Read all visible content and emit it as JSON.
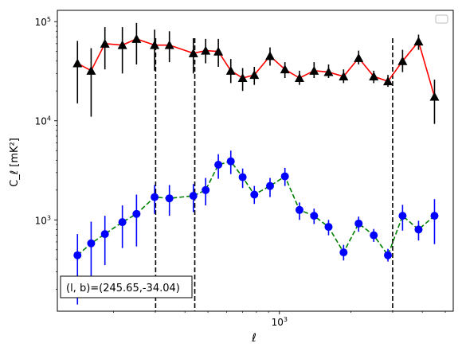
{
  "chart_data": {
    "type": "line",
    "xlabel": "ℓ",
    "ylabel": "C_ℓ [mK²]",
    "xscale": "log",
    "yscale": "log",
    "xlim": [
      116,
      5400
    ],
    "ylim": [
      120,
      130000
    ],
    "x_tick_labels": [
      {
        "value": 1000,
        "mantissa": "10",
        "exp": "3"
      }
    ],
    "y_tick_labels": [
      {
        "value": 1000,
        "mantissa": "10",
        "exp": "3"
      },
      {
        "value": 10000,
        "mantissa": "10",
        "exp": "4"
      },
      {
        "value": 100000,
        "mantissa": "10",
        "exp": "5"
      }
    ],
    "legend": {
      "placement": "top-right",
      "entries": []
    },
    "annotation": {
      "text": "(l, b)=(245.65,-34.04)",
      "placement": "bottom-left"
    },
    "vlines": [
      {
        "x": 301,
        "style": "dashed",
        "color": "#000000"
      },
      {
        "x": 440,
        "style": "dashed",
        "color": "#000000"
      },
      {
        "x": 3000,
        "style": "dashed",
        "color": "#000000"
      }
    ],
    "series": [
      {
        "color": "#000000",
        "line_color": "#ff0000",
        "line_style": "solid",
        "marker": "triangle",
        "points": [
          {
            "x": 141,
            "y": 38000,
            "lo": 15000,
            "hi": 64000
          },
          {
            "x": 161,
            "y": 32000,
            "lo": 11000,
            "hi": 54000
          },
          {
            "x": 184,
            "y": 60000,
            "lo": 33000,
            "hi": 88000
          },
          {
            "x": 218,
            "y": 58000,
            "lo": 30000,
            "hi": 88000
          },
          {
            "x": 250,
            "y": 67000,
            "lo": 37000,
            "hi": 97000
          },
          {
            "x": 298,
            "y": 58000,
            "lo": 32000,
            "hi": 83000
          },
          {
            "x": 344,
            "y": 58000,
            "lo": 39000,
            "hi": 80000
          },
          {
            "x": 434,
            "y": 48000,
            "lo": 30000,
            "hi": 68000
          },
          {
            "x": 489,
            "y": 51000,
            "lo": 38000,
            "hi": 67000
          },
          {
            "x": 553,
            "y": 50000,
            "lo": 35000,
            "hi": 67000
          },
          {
            "x": 624,
            "y": 32000,
            "lo": 24000,
            "hi": 42000
          },
          {
            "x": 700,
            "y": 27000,
            "lo": 20000,
            "hi": 34000
          },
          {
            "x": 784,
            "y": 29000,
            "lo": 23000,
            "hi": 35000
          },
          {
            "x": 913,
            "y": 45000,
            "lo": 36000,
            "hi": 55000
          },
          {
            "x": 1055,
            "y": 33000,
            "lo": 27000,
            "hi": 39000
          },
          {
            "x": 1215,
            "y": 27000,
            "lo": 23000,
            "hi": 32000
          },
          {
            "x": 1400,
            "y": 32000,
            "lo": 27000,
            "hi": 39000
          },
          {
            "x": 1611,
            "y": 31000,
            "lo": 27000,
            "hi": 37000
          },
          {
            "x": 1864,
            "y": 28000,
            "lo": 24000,
            "hi": 33000
          },
          {
            "x": 2157,
            "y": 43000,
            "lo": 37000,
            "hi": 51000
          },
          {
            "x": 2498,
            "y": 28000,
            "lo": 24000,
            "hi": 32000
          },
          {
            "x": 2866,
            "y": 25000,
            "lo": 22000,
            "hi": 29000
          },
          {
            "x": 3303,
            "y": 40000,
            "lo": 31000,
            "hi": 52000
          },
          {
            "x": 3857,
            "y": 63000,
            "lo": 52000,
            "hi": 74000
          },
          {
            "x": 4502,
            "y": 17500,
            "lo": 9300,
            "hi": 26000
          }
        ]
      },
      {
        "color": "#0000ff",
        "line_color": "#008000",
        "line_style": "dashed",
        "marker": "circle",
        "points": [
          {
            "x": 141,
            "y": 440,
            "lo": 140,
            "hi": 720
          },
          {
            "x": 161,
            "y": 580,
            "lo": 210,
            "hi": 960
          },
          {
            "x": 184,
            "y": 720,
            "lo": 350,
            "hi": 1100
          },
          {
            "x": 218,
            "y": 950,
            "lo": 520,
            "hi": 1400
          },
          {
            "x": 250,
            "y": 1150,
            "lo": 540,
            "hi": 1800
          },
          {
            "x": 298,
            "y": 1700,
            "lo": 1150,
            "hi": 2250
          },
          {
            "x": 344,
            "y": 1650,
            "lo": 1100,
            "hi": 2250
          },
          {
            "x": 434,
            "y": 1750,
            "lo": 1200,
            "hi": 2300
          },
          {
            "x": 489,
            "y": 2000,
            "lo": 1400,
            "hi": 2650
          },
          {
            "x": 553,
            "y": 3600,
            "lo": 2600,
            "hi": 4600
          },
          {
            "x": 624,
            "y": 3900,
            "lo": 2900,
            "hi": 5000
          },
          {
            "x": 700,
            "y": 2700,
            "lo": 2100,
            "hi": 3300
          },
          {
            "x": 784,
            "y": 1800,
            "lo": 1450,
            "hi": 2200
          },
          {
            "x": 913,
            "y": 2200,
            "lo": 1700,
            "hi": 2650
          },
          {
            "x": 1055,
            "y": 2750,
            "lo": 2200,
            "hi": 3350
          },
          {
            "x": 1215,
            "y": 1260,
            "lo": 1000,
            "hi": 1500
          },
          {
            "x": 1400,
            "y": 1100,
            "lo": 910,
            "hi": 1300
          },
          {
            "x": 1611,
            "y": 850,
            "lo": 700,
            "hi": 1000
          },
          {
            "x": 1864,
            "y": 470,
            "lo": 390,
            "hi": 560
          },
          {
            "x": 2157,
            "y": 920,
            "lo": 760,
            "hi": 1080
          },
          {
            "x": 2498,
            "y": 700,
            "lo": 600,
            "hi": 810
          },
          {
            "x": 2866,
            "y": 440,
            "lo": 380,
            "hi": 510
          },
          {
            "x": 3303,
            "y": 1100,
            "lo": 780,
            "hi": 1420
          },
          {
            "x": 3857,
            "y": 800,
            "lo": 620,
            "hi": 980
          },
          {
            "x": 4502,
            "y": 1100,
            "lo": 570,
            "hi": 1620
          }
        ]
      }
    ]
  }
}
